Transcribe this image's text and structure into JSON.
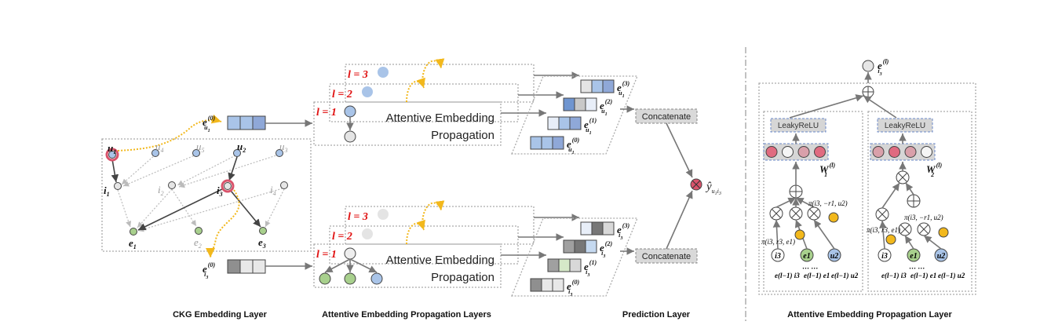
{
  "colors": {
    "user": "#a9c4e8",
    "item": "#e6e6e6",
    "entity": "#a8d08d",
    "highlight": "#d9536b",
    "attention": "#f2b81c",
    "layer_label": "#e01010",
    "panel": "#f2f2f2"
  },
  "ckg": {
    "users": [
      "u",
      "u",
      "u",
      "u",
      "u"
    ],
    "user_subs": [
      "1",
      "4",
      "5",
      "2",
      "3"
    ],
    "items": [
      "i",
      "i",
      "i",
      "i"
    ],
    "item_subs": [
      "1",
      "2",
      "3",
      "4"
    ],
    "entities": [
      "e",
      "e",
      "e"
    ],
    "entity_subs": [
      "1",
      "2",
      "3"
    ],
    "emb_user": {
      "base": "e",
      "sub": "u",
      "subsub": "1",
      "sup": "(0)"
    },
    "emb_item": {
      "base": "e",
      "sub": "i",
      "subsub": "3",
      "sup": "(0)"
    }
  },
  "propagation": {
    "layers": [
      "l = 3",
      "l = 2",
      "l = 1"
    ],
    "box_text_line1": "Attentive Embedding",
    "box_text_line2": "Propagation",
    "user_stack": [
      {
        "sup": "(3)",
        "sub": "u",
        "subsub": "1"
      },
      {
        "sup": "(2)",
        "sub": "u",
        "subsub": "1"
      },
      {
        "sup": "(1)",
        "sub": "u",
        "subsub": "1"
      },
      {
        "sup": "(0)",
        "sub": "u",
        "subsub": "1"
      }
    ],
    "item_stack": [
      {
        "sup": "(3)",
        "sub": "i",
        "subsub": "3"
      },
      {
        "sup": "(2)",
        "sub": "i",
        "subsub": "3"
      },
      {
        "sup": "(1)",
        "sub": "i",
        "subsub": "3"
      },
      {
        "sup": "(0)",
        "sub": "i",
        "subsub": "3"
      }
    ],
    "user_cells": [
      [
        "#e4e4e4",
        "#a9c4e8",
        "#8fa8d8"
      ],
      [
        "#6f95d0",
        "#c8c8c8",
        "#e8eef8"
      ],
      [
        "#e8eef8",
        "#a9c4e8",
        "#8fa8d8"
      ],
      [
        "#a9c4e8",
        "#a9c4e8",
        "#8fa8d8"
      ]
    ],
    "item_cells": [
      [
        "#e8eef8",
        "#777777",
        "#d8d8d8"
      ],
      [
        "#a0a0a0",
        "#777777",
        "#c5d9f0"
      ],
      [
        "#a0a0a0",
        "#d5e8c8",
        "#d8d8d8"
      ],
      [
        "#8f8f8f",
        "#e8e8e8",
        "#e8e8e8"
      ]
    ],
    "emb0_user_cells": [
      "#a9c4e8",
      "#a9c4e8",
      "#8fa8d8"
    ],
    "emb0_item_cells": [
      "#8f8f8f",
      "#e8e8e8",
      "#e8e8e8"
    ]
  },
  "prediction": {
    "concat_label": "Concatenate",
    "output": {
      "base": "ŷ",
      "sub": "u",
      "subsub1": "1",
      "sub2": "i",
      "subsub2": "3"
    }
  },
  "detail": {
    "top_label": {
      "base": "e",
      "sub": "i",
      "subsub": "3",
      "sup": "(l)"
    },
    "activation": "LeakyReLU",
    "weights": [
      {
        "base": "W",
        "sub": "1",
        "sup": "(l)"
      },
      {
        "base": "W",
        "sub": "2",
        "sup": "(l)"
      }
    ],
    "neuron_colors_1": [
      "#e06b80",
      "#f5f5f5",
      "#d9a0aa",
      "#e06b80"
    ],
    "neuron_colors_2": [
      "#d9a0aa",
      "#e06b80",
      "#d9a0aa",
      "#f5f5f5"
    ],
    "nodes": [
      "i3",
      "e1",
      "u2"
    ],
    "pi_a": "π(i3, r3, e1)",
    "pi_b": "π(i3, −r1, u2)",
    "inputs": [
      "e(l−1) i3",
      "e(l−1) e1",
      "e(l−1) u2"
    ],
    "ellipsis": "··· ···"
  },
  "captions": [
    "CKG Embedding Layer",
    "Attentive Embedding Propagation Layers",
    "Prediction Layer",
    "Attentive Embedding Propagation Layer"
  ]
}
